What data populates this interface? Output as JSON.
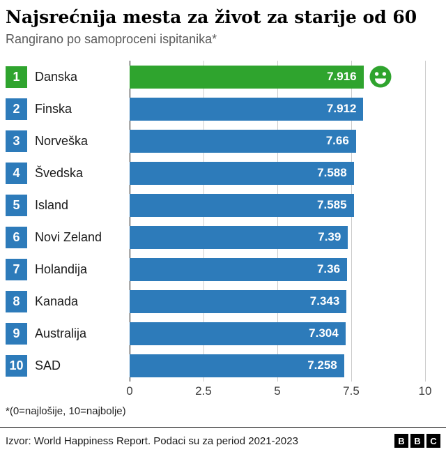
{
  "title": "Najsrećnija mesta za život za starije od 60",
  "subtitle": "Rangirano po samoproceni ispitanika*",
  "footnote": "*(0=najlošije, 10=najbolje)",
  "source": "Izvor: World Happiness Report. Podaci su za period 2021-2023",
  "logo": {
    "letters": [
      "B",
      "B",
      "C"
    ]
  },
  "colors": {
    "bar": "#2d7bba",
    "highlight": "#2fa42e",
    "value_text": "#ffffff",
    "grid": "#cccccc",
    "zero_line": "#000000"
  },
  "icons": {
    "highlight": "smiley-face-icon"
  },
  "chart_data": {
    "type": "bar",
    "orientation": "horizontal",
    "title": "Najsrećnija mesta za život za starije od 60",
    "subtitle": "Rangirano po samoproceni ispitanika*",
    "categories": [
      "Danska",
      "Finska",
      "Norveška",
      "Švedska",
      "Island",
      "Novi Zeland",
      "Holandija",
      "Kanada",
      "Australija",
      "SAD"
    ],
    "ranks": [
      1,
      2,
      3,
      4,
      5,
      6,
      7,
      8,
      9,
      10
    ],
    "values": [
      7.916,
      7.912,
      7.66,
      7.588,
      7.585,
      7.39,
      7.36,
      7.343,
      7.304,
      7.258
    ],
    "value_labels": [
      "7.916",
      "7.912",
      "7.66",
      "7.588",
      "7.585",
      "7.39",
      "7.36",
      "7.343",
      "7.304",
      "7.258"
    ],
    "highlight_index": 0,
    "xlim": [
      0,
      10
    ],
    "xticks": [
      0,
      2.5,
      5,
      7.5,
      10
    ],
    "xtick_labels": [
      "0",
      "2.5",
      "5",
      "7.5",
      "10"
    ],
    "grid": true,
    "legend": false,
    "scale_note": "0=najlošije, 10=najbolje"
  }
}
